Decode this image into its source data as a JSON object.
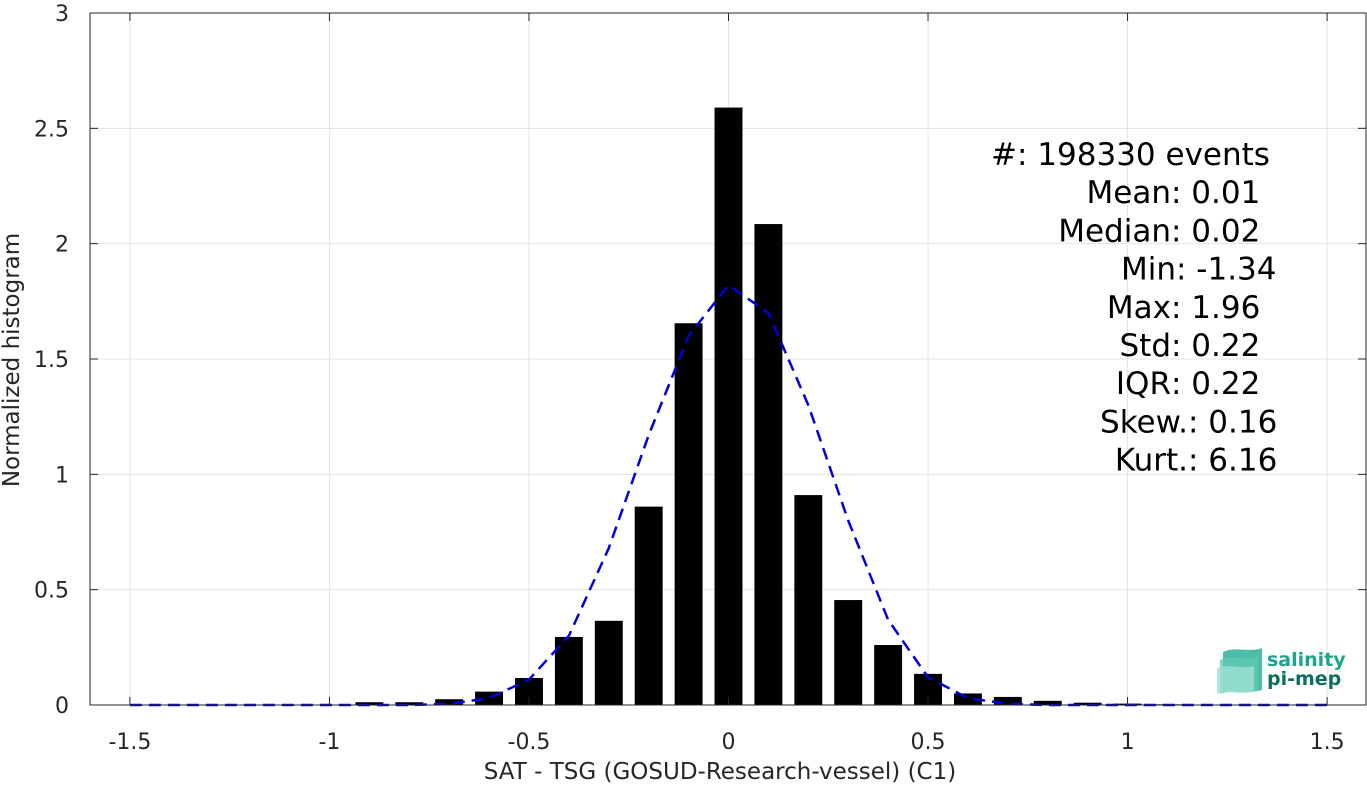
{
  "chart_data": {
    "type": "bar",
    "xlabel": "SAT - TSG (GOSUD-Research-vessel) (C1)",
    "ylabel": "Normalized histogram",
    "xlim": [
      -1.6,
      1.6
    ],
    "ylim": [
      0,
      3
    ],
    "grid": true,
    "x_ticks": [
      -1.5,
      -1,
      -0.5,
      0,
      0.5,
      1,
      1.5
    ],
    "x_tick_labels": [
      "-1.5",
      "-1",
      "-0.5",
      "0",
      "0.5",
      "1",
      "1.5"
    ],
    "y_ticks": [
      0,
      0.5,
      1,
      1.5,
      2,
      2.5,
      3
    ],
    "y_tick_labels": [
      "0",
      "0.5",
      "1",
      "1.5",
      "2",
      "2.5",
      "3"
    ],
    "bar_width": 0.07,
    "bar_color": "#000000",
    "bars": {
      "x": [
        -1.4,
        -1.3,
        -1.2,
        -1.1,
        -1.0,
        -0.9,
        -0.8,
        -0.7,
        -0.6,
        -0.5,
        -0.4,
        -0.3,
        -0.2,
        -0.1,
        0.0,
        0.1,
        0.2,
        0.3,
        0.4,
        0.5,
        0.6,
        0.7,
        0.8,
        0.9,
        1.0,
        1.1,
        1.2,
        1.3,
        1.4,
        1.5
      ],
      "values": [
        0.0,
        0.0,
        0.0,
        0.0,
        0.002,
        0.012,
        0.012,
        0.025,
        0.058,
        0.117,
        0.295,
        0.365,
        0.86,
        1.655,
        2.59,
        2.085,
        0.91,
        0.455,
        0.26,
        0.135,
        0.05,
        0.035,
        0.018,
        0.01,
        0.006,
        0.003,
        0.002,
        0.001,
        0.001,
        0.001
      ]
    },
    "series": [
      {
        "kind": "dashed-line",
        "color": "#0000dd",
        "x": [
          -1.5,
          -1.4,
          -1.3,
          -1.2,
          -1.1,
          -1.0,
          -0.9,
          -0.8,
          -0.7,
          -0.6,
          -0.5,
          -0.4,
          -0.3,
          -0.2,
          -0.1,
          0.0,
          0.1,
          0.2,
          0.3,
          0.4,
          0.5,
          0.6,
          0.7,
          0.8,
          0.9,
          1.0,
          1.1,
          1.2,
          1.3,
          1.4,
          1.5
        ],
        "values": [
          0.0,
          0.0,
          0.0,
          0.0,
          0.0,
          0.0,
          0.0,
          0.0,
          0.005,
          0.03,
          0.11,
          0.3,
          0.68,
          1.17,
          1.6,
          1.82,
          1.7,
          1.3,
          0.8,
          0.37,
          0.12,
          0.03,
          0.005,
          0.0,
          0.0,
          0.0,
          0.0,
          0.0,
          0.0,
          0.0,
          0.0
        ]
      }
    ],
    "annotations": [
      {
        "label": "#  ",
        "value": ": 198330 events"
      },
      {
        "label": "Mean ",
        "value": ": 0.01"
      },
      {
        "label": "Median ",
        "value": ": 0.02"
      },
      {
        "label": "Min ",
        "value": ": -1.34"
      },
      {
        "label": "Max ",
        "value": ": 1.96"
      },
      {
        "label": "Std ",
        "value": ": 0.22"
      },
      {
        "label": "IQR ",
        "value": ": 0.22"
      },
      {
        "label": "Skew. ",
        "value": ": 0.16"
      },
      {
        "label": "Kurt. ",
        "value": ": 6.16"
      }
    ]
  },
  "logo": {
    "line1": "salinity",
    "line2": "pi-mep",
    "color": "#1aa58c"
  }
}
